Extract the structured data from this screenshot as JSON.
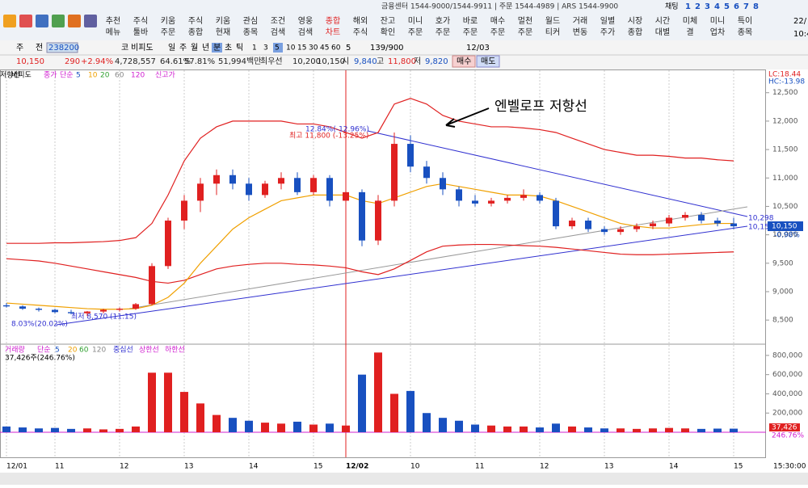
{
  "header": {
    "menu": [
      [
        "추천",
        "메뉴"
      ],
      [
        "주식",
        "툴바"
      ],
      [
        "키움",
        "주문"
      ],
      [
        "주식",
        "종합"
      ],
      [
        "키움",
        "현재"
      ],
      [
        "관심",
        "종목"
      ],
      [
        "조건",
        "검색"
      ],
      [
        "영웅",
        "검색"
      ],
      [
        "종합",
        "차트"
      ],
      [
        "해외",
        "주식"
      ],
      [
        "잔고",
        "확인"
      ],
      [
        "미니",
        "주문"
      ],
      [
        "호가",
        "주문"
      ],
      [
        "바로",
        "주문"
      ],
      [
        "매수",
        "주문"
      ],
      [
        "멀천",
        "주문"
      ],
      [
        "월드",
        "티커"
      ],
      [
        "거래",
        "변동"
      ],
      [
        "일별",
        "주가"
      ],
      [
        "시장",
        "종합"
      ],
      [
        "시간",
        "대별"
      ],
      [
        "미체",
        "결"
      ],
      [
        "미니",
        "업차"
      ],
      [
        "특이",
        "종목"
      ]
    ],
    "phone": "금융센터 1544-9000/1544-9911 | 주문 1544-4989 | ARS 1544-9900",
    "chat": "채팅",
    "tabs": [
      "1",
      "2",
      "3",
      "4",
      "5",
      "6",
      "7",
      "8"
    ],
    "date": "22/",
    "time": "10:4"
  },
  "toolbar": {
    "week": "주",
    "all": "전",
    "code": "238200",
    "ko": "코",
    "name": "비피도",
    "periods": [
      "일",
      "주",
      "월",
      "년",
      "분",
      "초",
      "틱"
    ],
    "minutes": [
      "1",
      "3",
      "5",
      "10",
      "15",
      "30",
      "45",
      "60"
    ],
    "unit": "5",
    "count": "139/900",
    "date": "12/03"
  },
  "quote": {
    "price": "10,150",
    "change": "290",
    "rate": "+2.94%",
    "volume": "4,728,557",
    "r1": "64.61%",
    "r2": "57.81%",
    "amount": "51,994백만",
    "best": "최우선",
    "ask": "10,200",
    "bid": "10,150",
    "open_label": "시",
    "open": "9,840",
    "high_label": "고",
    "high": "11,800",
    "low_label": "저",
    "low": "9,820",
    "buy": "매수",
    "sell": "매도"
  },
  "chart_data": [
    {
      "type": "candlestick",
      "legend": [
        "비피도",
        "종가",
        "단순",
        "5",
        "10",
        "20",
        "60",
        "120",
        "신고가",
        "저항선"
      ],
      "categories": [
        "12/01",
        null,
        null,
        "11",
        null,
        null,
        null,
        "12",
        null,
        null,
        null,
        "13",
        null,
        null,
        null,
        "14",
        null,
        null,
        null,
        "15",
        null,
        "12/02",
        null,
        null,
        null,
        "10",
        null,
        null,
        null,
        "11",
        null,
        null,
        null,
        "12",
        null,
        null,
        null,
        "13",
        null,
        null,
        null,
        "14",
        null,
        null,
        null,
        "15"
      ],
      "open": [
        8760,
        8740,
        8700,
        8680,
        8640,
        8620,
        8650,
        8680,
        8700,
        8780,
        9450,
        10250,
        10600,
        10900,
        11050,
        10900,
        10700,
        10900,
        11000,
        10750,
        11000,
        10600,
        10750,
        9900,
        10600,
        11600,
        11200,
        11000,
        10800,
        10600,
        10550,
        10600,
        10650,
        10700,
        10600,
        10150,
        10250,
        10100,
        10050,
        10100,
        10150,
        10200,
        10300,
        10350,
        10250,
        10200
      ],
      "high": [
        8800,
        8760,
        8720,
        8700,
        8680,
        8660,
        8700,
        8720,
        8800,
        9500,
        10300,
        10700,
        11000,
        11150,
        11150,
        11000,
        10950,
        11100,
        11100,
        11050,
        11050,
        10800,
        10800,
        10700,
        11800,
        11750,
        11300,
        11100,
        10850,
        10700,
        10650,
        10700,
        10800,
        10750,
        10650,
        10300,
        10300,
        10150,
        10150,
        10200,
        10250,
        10350,
        10400,
        10400,
        10300,
        10300
      ],
      "low": [
        8720,
        8680,
        8650,
        8620,
        8600,
        8570,
        8620,
        8650,
        8680,
        8760,
        9400,
        10100,
        10400,
        10700,
        10800,
        10600,
        10650,
        10800,
        10700,
        10700,
        10500,
        10500,
        9800,
        9820,
        10500,
        11100,
        10900,
        10700,
        10500,
        10500,
        10500,
        10550,
        10600,
        10550,
        10100,
        10100,
        10050,
        10000,
        10000,
        10050,
        10100,
        10150,
        10250,
        10200,
        10150,
        10100
      ],
      "close": [
        8740,
        8700,
        8680,
        8640,
        8620,
        8650,
        8680,
        8700,
        8780,
        9450,
        10250,
        10600,
        10900,
        11050,
        10900,
        10700,
        10900,
        11000,
        10750,
        11000,
        10600,
        10750,
        9900,
        10600,
        11600,
        11200,
        11000,
        10800,
        10600,
        10550,
        10600,
        10650,
        10700,
        10600,
        10150,
        10250,
        10100,
        10050,
        10100,
        10150,
        10200,
        10300,
        10350,
        10250,
        10200,
        10150
      ],
      "series": [
        {
          "name": "상한선",
          "color": "#e02020",
          "values": [
            9850,
            9850,
            9850,
            9860,
            9860,
            9870,
            9880,
            9900,
            9950,
            10200,
            10700,
            11300,
            11700,
            11900,
            12000,
            12000,
            12000,
            12000,
            11950,
            11950,
            11900,
            11800,
            11700,
            11800,
            12300,
            12400,
            12300,
            12100,
            12000,
            11950,
            11900,
            11900,
            11880,
            11850,
            11800,
            11700,
            11600,
            11500,
            11450,
            11400,
            11400,
            11380,
            11350,
            11350,
            11320,
            11300
          ]
        },
        {
          "name": "하한선",
          "color": "#e02020",
          "values": [
            9580,
            9560,
            9540,
            9500,
            9450,
            9400,
            9350,
            9300,
            9250,
            9180,
            9150,
            9200,
            9300,
            9400,
            9450,
            9480,
            9500,
            9500,
            9480,
            9470,
            9450,
            9420,
            9350,
            9300,
            9400,
            9550,
            9700,
            9800,
            9820,
            9830,
            9830,
            9820,
            9810,
            9800,
            9780,
            9750,
            9720,
            9690,
            9660,
            9650,
            9650,
            9660,
            9670,
            9680,
            9690,
            9700
          ]
        },
        {
          "name": "20",
          "color": "#f0a000",
          "values": [
            8800,
            8780,
            8760,
            8740,
            8720,
            8700,
            8690,
            8690,
            8700,
            8760,
            8900,
            9150,
            9500,
            9800,
            10100,
            10300,
            10450,
            10600,
            10650,
            10700,
            10700,
            10700,
            10600,
            10550,
            10650,
            10750,
            10850,
            10900,
            10850,
            10800,
            10750,
            10700,
            10700,
            10680,
            10600,
            10500,
            10400,
            10300,
            10200,
            10150,
            10120,
            10120,
            10150,
            10180,
            10200,
            10200
          ]
        }
      ],
      "ylim": [
        8090,
        12880
      ],
      "yticks": [
        {
          "value": 8500,
          "label": "8,500"
        },
        {
          "value": 9000,
          "label": "9,000"
        },
        {
          "value": 9500,
          "label": "9,500"
        },
        {
          "value": 10000,
          "label": "10,000"
        },
        {
          "value": 10500,
          "label": "10,500"
        },
        {
          "value": 11000,
          "label": "11,000"
        },
        {
          "value": 11500,
          "label": "11,500"
        },
        {
          "value": 12000,
          "label": "12,000"
        },
        {
          "value": 12500,
          "label": "12,500"
        }
      ],
      "up_color": "#e02020",
      "down_color": "#1850c0",
      "annotations": {
        "resistance": "엔벨로프 저항선",
        "high": "최고 11,800 (-13.25%)",
        "high_pct": "12.84%(-12.96%)",
        "low": "최저 8,570 (11:15)",
        "low_pct": "8.03%(20.02%)",
        "lc": "LC:18.44",
        "hc": "HC:-13.98",
        "last": "10,150",
        "last_pct": "-0.98%",
        "r1": "10,298",
        "r2": "10,152",
        "time": "15:30:00"
      }
    },
    {
      "type": "bar",
      "legend": [
        "거래량",
        "단순",
        "5",
        "20",
        "60",
        "120",
        "중심선",
        "상한선",
        "하한선"
      ],
      "info": "37,426주(246.76%)",
      "values": [
        60000,
        50000,
        40000,
        45000,
        35000,
        40000,
        30000,
        35000,
        60000,
        620000,
        620000,
        420000,
        300000,
        180000,
        150000,
        120000,
        100000,
        90000,
        110000,
        80000,
        90000,
        70000,
        600000,
        830000,
        400000,
        430000,
        200000,
        150000,
        120000,
        80000,
        70000,
        60000,
        60000,
        50000,
        90000,
        60000,
        50000,
        40000,
        40000,
        35000,
        40000,
        45000,
        40000,
        35000,
        38000,
        37426
      ],
      "ylim": [
        -84000,
        900000
      ],
      "yticks": [
        {
          "value": 200000,
          "label": "200,000"
        },
        {
          "value": 400000,
          "label": "400,000"
        },
        {
          "value": 600000,
          "label": "600,000"
        },
        {
          "value": 800000,
          "label": "800,000"
        }
      ],
      "last": "37,426",
      "last_pct": "246.76%"
    }
  ]
}
